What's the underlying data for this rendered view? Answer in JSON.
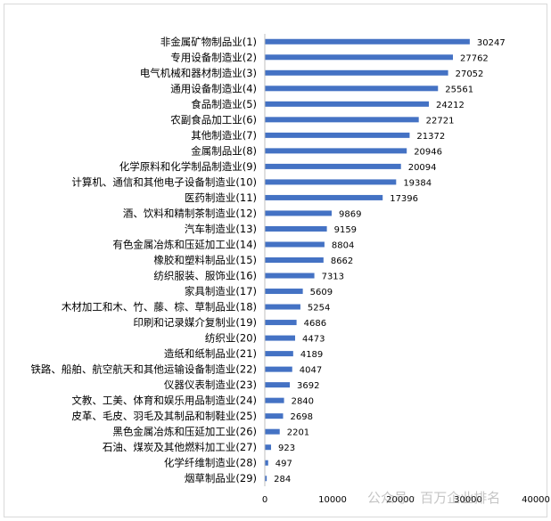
{
  "chart_data": {
    "type": "bar",
    "orientation": "horizontal",
    "title": "",
    "xlabel": "",
    "ylabel": "",
    "categories": [
      "非金属矿物制品业(1)",
      "专用设备制造业(2)",
      "电气机械和器材制造业(3)",
      "通用设备制造业(4)",
      "食品制造业(5)",
      "农副食品加工业(6)",
      "其他制造业(7)",
      "金属制品业(8)",
      "化学原料和化学制品制造业(9)",
      "计算机、通信和其他电子设备制造业(10)",
      "医药制造业(11)",
      "酒、饮料和精制茶制造业(12)",
      "汽车制造业(13)",
      "有色金属冶炼和压延加工业(14)",
      "橡胶和塑料制品业(15)",
      "纺织服装、服饰业(16)",
      "家具制造业(17)",
      "木材加工和木、竹、藤、棕、草制品业(18)",
      "印刷和记录媒介复制业(19)",
      "纺织业(20)",
      "造纸和纸制品业(21)",
      "铁路、船舶、航空航天和其他运输设备制造业(22)",
      "仪器仪表制造业(23)",
      "文教、工美、体育和娱乐用品制造业(24)",
      "皮革、毛皮、羽毛及其制品和制鞋业(25)",
      "黑色金属冶炼和压延加工业(26)",
      "石油、煤炭及其他燃料加工业(27)",
      "化学纤维制造业(28)",
      "烟草制品业(29)"
    ],
    "values": [
      30247,
      27762,
      27052,
      25561,
      24212,
      22721,
      21372,
      20946,
      20094,
      19384,
      17396,
      9869,
      9159,
      8804,
      8662,
      7313,
      5609,
      5254,
      4686,
      4473,
      4189,
      4047,
      3692,
      2840,
      2698,
      2201,
      923,
      497,
      284
    ],
    "xlim": [
      0,
      40000
    ],
    "xticks": [
      0,
      10000,
      20000,
      30000,
      40000
    ],
    "bar_color": "#4472c4",
    "grid": false,
    "legend": "none"
  },
  "watermark": "公众号 · 百万企业排名"
}
